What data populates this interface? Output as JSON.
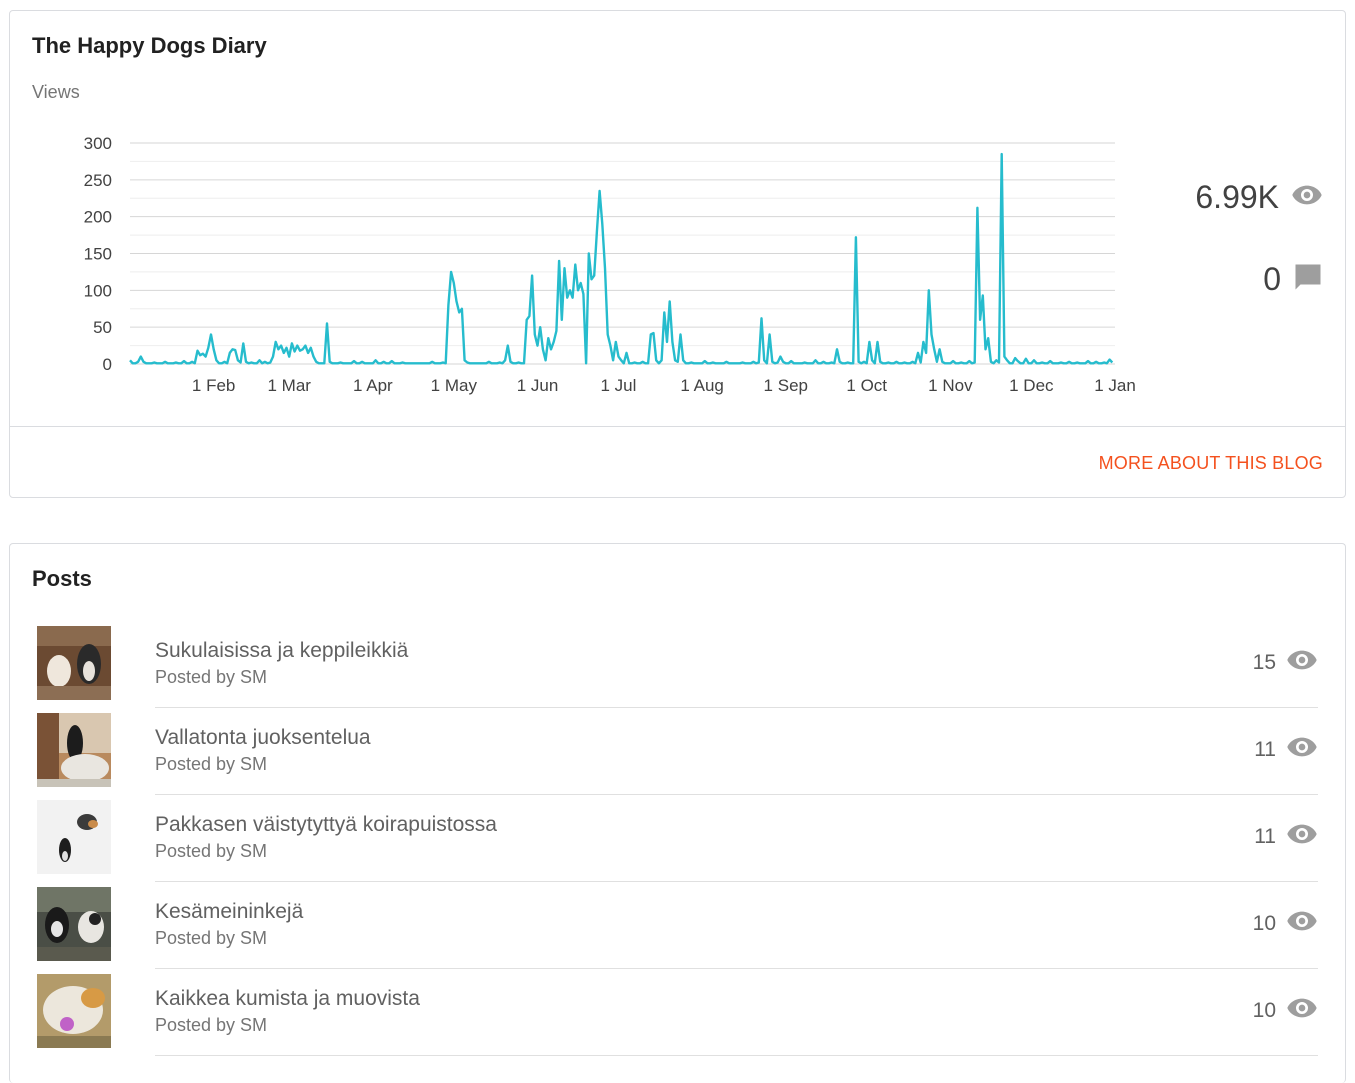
{
  "blog": {
    "title": "The Happy Dogs Diary",
    "views_label": "Views",
    "total_views": "6.99K",
    "total_comments": "0",
    "more_link": "MORE ABOUT THIS BLOG"
  },
  "icons": {
    "views": "eye-icon",
    "comments": "comment-icon"
  },
  "colors": {
    "line": "#26bccd",
    "accent": "#f4511e"
  },
  "chart_data": {
    "type": "line",
    "title": "",
    "xlabel": "",
    "ylabel": "",
    "ylim": [
      0,
      300
    ],
    "yticks": [
      "0",
      "50",
      "100",
      "150",
      "200",
      "250",
      "300"
    ],
    "xtick_labels": [
      "1 Feb",
      "1 Mar",
      "1 Apr",
      "1 May",
      "1 Jun",
      "1 Jul",
      "1 Aug",
      "1 Sep",
      "1 Oct",
      "1 Nov",
      "1 Dec",
      "1 Jan"
    ],
    "grid": true,
    "series": [
      {
        "points": [
          [
            "01-01",
            5
          ],
          [
            "01-04",
            3
          ],
          [
            "01-05",
            10
          ],
          [
            "01-06",
            3
          ],
          [
            "01-10",
            2
          ],
          [
            "01-14",
            3
          ],
          [
            "01-18",
            2
          ],
          [
            "01-21",
            4
          ],
          [
            "01-24",
            3
          ],
          [
            "01-26",
            18
          ],
          [
            "01-27",
            12
          ],
          [
            "01-28",
            14
          ],
          [
            "01-29",
            10
          ],
          [
            "01-30",
            22
          ],
          [
            "01-31",
            40
          ],
          [
            "02-01",
            20
          ],
          [
            "02-02",
            5
          ],
          [
            "02-05",
            3
          ],
          [
            "02-07",
            15
          ],
          [
            "02-08",
            20
          ],
          [
            "02-09",
            19
          ],
          [
            "02-10",
            5
          ],
          [
            "02-11",
            2
          ],
          [
            "02-12",
            28
          ],
          [
            "02-13",
            3
          ],
          [
            "02-15",
            2
          ],
          [
            "02-18",
            5
          ],
          [
            "02-20",
            3
          ],
          [
            "02-22",
            2
          ],
          [
            "02-23",
            10
          ],
          [
            "02-24",
            30
          ],
          [
            "02-25",
            20
          ],
          [
            "02-26",
            25
          ],
          [
            "02-27",
            15
          ],
          [
            "02-28",
            22
          ],
          [
            "03-01",
            10
          ],
          [
            "03-02",
            28
          ],
          [
            "03-03",
            17
          ],
          [
            "03-04",
            25
          ],
          [
            "03-05",
            18
          ],
          [
            "03-06",
            20
          ],
          [
            "03-07",
            25
          ],
          [
            "03-08",
            15
          ],
          [
            "03-09",
            22
          ],
          [
            "03-10",
            10
          ],
          [
            "03-11",
            3
          ],
          [
            "03-14",
            1
          ],
          [
            "03-15",
            55
          ],
          [
            "03-16",
            3
          ],
          [
            "03-20",
            2
          ],
          [
            "03-25",
            4
          ],
          [
            "03-28",
            3
          ],
          [
            "04-02",
            5
          ],
          [
            "04-05",
            3
          ],
          [
            "04-08",
            4
          ],
          [
            "04-12",
            2
          ],
          [
            "04-18",
            1
          ],
          [
            "04-23",
            3
          ],
          [
            "04-27",
            2
          ],
          [
            "04-29",
            80
          ],
          [
            "04-30",
            125
          ],
          [
            "05-01",
            110
          ],
          [
            "05-02",
            85
          ],
          [
            "05-03",
            70
          ],
          [
            "05-04",
            75
          ],
          [
            "05-05",
            5
          ],
          [
            "05-06",
            2
          ],
          [
            "05-10",
            1
          ],
          [
            "05-14",
            3
          ],
          [
            "05-18",
            2
          ],
          [
            "05-20",
            5
          ],
          [
            "05-21",
            25
          ],
          [
            "05-22",
            3
          ],
          [
            "05-25",
            2
          ],
          [
            "05-28",
            60
          ],
          [
            "05-29",
            65
          ],
          [
            "05-30",
            120
          ],
          [
            "05-31",
            40
          ],
          [
            "06-01",
            25
          ],
          [
            "06-02",
            50
          ],
          [
            "06-03",
            20
          ],
          [
            "06-04",
            5
          ],
          [
            "06-05",
            35
          ],
          [
            "06-06",
            20
          ],
          [
            "06-07",
            30
          ],
          [
            "06-08",
            45
          ],
          [
            "06-09",
            140
          ],
          [
            "06-10",
            60
          ],
          [
            "06-11",
            130
          ],
          [
            "06-12",
            90
          ],
          [
            "06-13",
            100
          ],
          [
            "06-14",
            90
          ],
          [
            "06-15",
            135
          ],
          [
            "06-16",
            100
          ],
          [
            "06-17",
            110
          ],
          [
            "06-18",
            95
          ],
          [
            "06-20",
            150
          ],
          [
            "06-21",
            115
          ],
          [
            "06-22",
            120
          ],
          [
            "06-23",
            180
          ],
          [
            "06-24",
            235
          ],
          [
            "06-25",
            190
          ],
          [
            "06-26",
            130
          ],
          [
            "06-27",
            40
          ],
          [
            "06-28",
            25
          ],
          [
            "06-29",
            5
          ],
          [
            "06-30",
            30
          ],
          [
            "07-01",
            10
          ],
          [
            "07-02",
            5
          ],
          [
            "07-04",
            15
          ],
          [
            "07-07",
            2
          ],
          [
            "07-10",
            3
          ],
          [
            "07-13",
            40
          ],
          [
            "07-14",
            42
          ],
          [
            "07-15",
            5
          ],
          [
            "07-17",
            5
          ],
          [
            "07-18",
            70
          ],
          [
            "07-19",
            30
          ],
          [
            "07-20",
            85
          ],
          [
            "07-21",
            30
          ],
          [
            "07-22",
            5
          ],
          [
            "07-23",
            3
          ],
          [
            "07-24",
            40
          ],
          [
            "07-25",
            5
          ],
          [
            "07-28",
            2
          ],
          [
            "08-02",
            4
          ],
          [
            "08-05",
            2
          ],
          [
            "08-10",
            3
          ],
          [
            "08-16",
            2
          ],
          [
            "08-20",
            3
          ],
          [
            "08-22",
            2
          ],
          [
            "08-23",
            62
          ],
          [
            "08-24",
            5
          ],
          [
            "08-26",
            40
          ],
          [
            "08-27",
            3
          ],
          [
            "08-29",
            2
          ],
          [
            "08-30",
            10
          ],
          [
            "08-31",
            3
          ],
          [
            "09-03",
            4
          ],
          [
            "09-08",
            2
          ],
          [
            "09-12",
            5
          ],
          [
            "09-15",
            3
          ],
          [
            "09-18",
            2
          ],
          [
            "09-20",
            20
          ],
          [
            "09-21",
            3
          ],
          [
            "09-24",
            2
          ],
          [
            "09-27",
            172
          ],
          [
            "09-28",
            3
          ],
          [
            "09-30",
            3
          ],
          [
            "10-02",
            30
          ],
          [
            "10-03",
            5
          ],
          [
            "10-05",
            30
          ],
          [
            "10-06",
            3
          ],
          [
            "10-09",
            2
          ],
          [
            "10-12",
            3
          ],
          [
            "10-15",
            2
          ],
          [
            "10-18",
            3
          ],
          [
            "10-20",
            15
          ],
          [
            "10-21",
            2
          ],
          [
            "10-22",
            30
          ],
          [
            "10-23",
            15
          ],
          [
            "10-24",
            100
          ],
          [
            "10-25",
            40
          ],
          [
            "10-26",
            20
          ],
          [
            "10-27",
            3
          ],
          [
            "10-28",
            20
          ],
          [
            "10-29",
            3
          ],
          [
            "11-02",
            4
          ],
          [
            "11-05",
            2
          ],
          [
            "11-08",
            4
          ],
          [
            "11-10",
            2
          ],
          [
            "11-11",
            212
          ],
          [
            "11-12",
            60
          ],
          [
            "11-13",
            93
          ],
          [
            "11-14",
            20
          ],
          [
            "11-15",
            35
          ],
          [
            "11-16",
            3
          ],
          [
            "11-18",
            5
          ],
          [
            "11-19",
            2
          ],
          [
            "11-20",
            285
          ],
          [
            "11-21",
            10
          ],
          [
            "11-22",
            5
          ],
          [
            "11-25",
            8
          ],
          [
            "11-26",
            4
          ],
          [
            "11-29",
            7
          ],
          [
            "12-02",
            5
          ],
          [
            "12-05",
            2
          ],
          [
            "12-08",
            4
          ],
          [
            "12-12",
            2
          ],
          [
            "12-15",
            3
          ],
          [
            "12-18",
            2
          ],
          [
            "12-22",
            4
          ],
          [
            "12-25",
            3
          ],
          [
            "12-28",
            2
          ],
          [
            "12-30",
            6
          ],
          [
            "12-31",
            2
          ]
        ]
      }
    ]
  },
  "posts": {
    "section_title": "Posts",
    "items": [
      {
        "title": "Sukulaisissa ja keppileikkiä",
        "author": "Posted by SM",
        "views": "15"
      },
      {
        "title": "Vallatonta juoksentelua",
        "author": "Posted by SM",
        "views": "11"
      },
      {
        "title": "Pakkasen väistytyttyä koirapuistossa",
        "author": "Posted by SM",
        "views": "11"
      },
      {
        "title": "Kesämeininkejä",
        "author": "Posted by SM",
        "views": "10"
      },
      {
        "title": "Kaikkea kumista ja muovista",
        "author": "Posted by SM",
        "views": "10"
      }
    ]
  }
}
